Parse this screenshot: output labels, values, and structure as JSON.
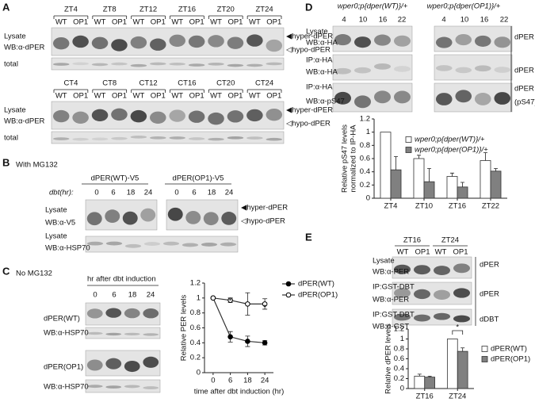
{
  "panels": {
    "A": {
      "label": "A",
      "zt": {
        "columns": [
          "ZT4",
          "ZT8",
          "ZT12",
          "ZT16",
          "ZT20",
          "ZT24"
        ],
        "lanes": [
          "WT",
          "OP1"
        ],
        "rows": [
          "Lysate",
          "WB:α-dPER",
          "total"
        ],
        "bands": [
          "◀hyper-dPER",
          "◁hypo-dPER"
        ]
      },
      "ct": {
        "columns": [
          "CT4",
          "CT8",
          "CT12",
          "CT16",
          "CT20",
          "CT24"
        ],
        "lanes": [
          "WT",
          "OP1"
        ],
        "rows": [
          "Lysate",
          "WB:α-dPER",
          "total"
        ],
        "bands": [
          "◀hyper-dPER",
          "◁hypo-dPER"
        ]
      }
    },
    "B": {
      "label": "B",
      "condition": "With MG132",
      "groups": [
        "dPER(WT)-V5",
        "dPER(OP1)-V5"
      ],
      "time_label": "dbt(hr):",
      "times": [
        "0",
        "6",
        "18",
        "24"
      ],
      "rows": [
        "Lysate",
        "WB:α-V5",
        "Lysate",
        "WB:α-HSP70"
      ],
      "bands": [
        "◀hyper-dPER",
        "◁hypo-dPER"
      ]
    },
    "C": {
      "label": "C",
      "condition": "No MG132",
      "header": "hr after dbt induction",
      "times": [
        "0",
        "6",
        "18",
        "24"
      ],
      "rows": [
        "dPER(WT)",
        "WB:α-HSP70",
        "dPER(OP1)",
        "WB:α-HSP70"
      ]
    },
    "D": {
      "label": "D",
      "genotypes": [
        "wper0;p{dper(WT)}/+",
        "wper0;p{dper(OP1)}/+"
      ],
      "times": [
        "4",
        "10",
        "16",
        "22"
      ],
      "rows": [
        "Lysate",
        "WB:α-HA",
        "IP:α-HA",
        "WB:α-HA",
        "IP:α-HA",
        "WB:α-pS47"
      ],
      "right_labels": [
        "dPER",
        "dPER",
        "dPER",
        "(pS47)"
      ]
    },
    "E": {
      "label": "E",
      "columns": [
        "ZT16",
        "ZT24"
      ],
      "lanes": [
        "WT",
        "OP1"
      ],
      "rows": [
        "Lysate",
        "WB:α-PER",
        "IP:GST-DBT",
        "WB:α-PER",
        "IP:GST-DBT",
        "WB:α-GST"
      ],
      "right_labels": [
        "dPER",
        "dPER",
        "dDBT"
      ]
    }
  },
  "chart_data": [
    {
      "type": "line",
      "categories": [
        "0",
        "6",
        "18",
        "24"
      ],
      "xlabel": "time after dbt induction (hr)",
      "ylabel": [
        "Relative PER levels"
      ],
      "ylim": [
        0,
        1.2
      ],
      "yticks": [
        0,
        0.2,
        0.4,
        0.6,
        0.8,
        1,
        1.2
      ],
      "legend": "upper right",
      "annotations": [
        "*",
        "*"
      ],
      "series": [
        {
          "name": "dPER(WT)",
          "color": "#000000",
          "values": [
            1,
            0.48,
            0.42,
            0.4
          ],
          "errors": [
            0,
            0.07,
            0.07,
            0.03
          ]
        },
        {
          "name": "dPER(OP1)",
          "color": "#ffffff",
          "values": [
            1,
            0.97,
            0.92,
            0.92
          ],
          "errors": [
            0,
            0.03,
            0.15,
            0.07
          ]
        }
      ]
    },
    {
      "type": "bar",
      "categories": [
        "ZT4",
        "ZT10",
        "ZT16",
        "ZT22"
      ],
      "ylabel": [
        "Relative pS47 levels",
        "normalized to IP-HA"
      ],
      "ylim": [
        0,
        1.2
      ],
      "yticks": [
        0,
        0.2,
        0.4,
        0.6,
        0.8,
        1,
        1.2
      ],
      "legend": "upper right",
      "annotations": [],
      "series": [
        {
          "name": "wper0;p{dper(WT)}/+",
          "color": "#ffffff",
          "values": [
            1,
            0.6,
            0.33,
            0.57
          ],
          "errors": [
            0,
            0.05,
            0.05,
            0.12
          ]
        },
        {
          "name": "wper0;p{dper(OP1)}/+",
          "color": "#808080",
          "values": [
            0.43,
            0.25,
            0.17,
            0.41
          ],
          "errors": [
            0.2,
            0.2,
            0.07,
            0.04
          ]
        }
      ]
    },
    {
      "type": "bar",
      "categories": [
        "ZT16",
        "ZT24"
      ],
      "ylabel": [
        "Relative dPER levels"
      ],
      "ylim": [
        0,
        1.2
      ],
      "yticks": [
        0,
        0.2,
        0.4,
        0.6,
        0.8,
        1,
        1.2
      ],
      "legend": "right",
      "annotations": [
        "*"
      ],
      "series": [
        {
          "name": "dPER(WT)",
          "color": "#ffffff",
          "values": [
            0.25,
            1
          ],
          "errors": [
            0.04,
            0
          ]
        },
        {
          "name": "dPER(OP1)",
          "color": "#808080",
          "values": [
            0.23,
            0.75
          ],
          "errors": [
            0.02,
            0.07
          ]
        }
      ]
    }
  ]
}
